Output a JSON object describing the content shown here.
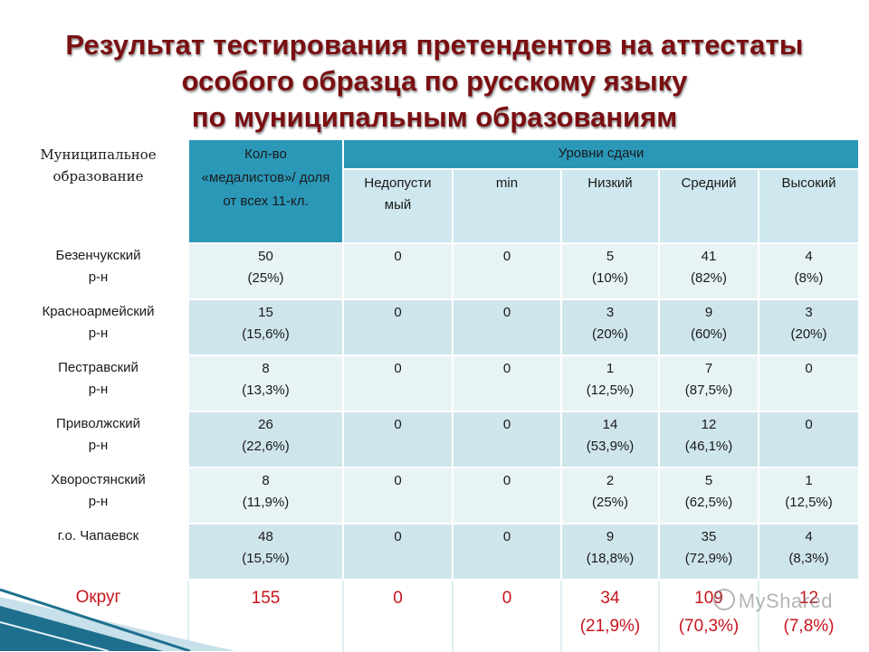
{
  "title": {
    "line1": "Результат тестирования претендентов на аттестаты",
    "line2": "особого образца по русскому языку",
    "line3": "по муниципальным образованиям"
  },
  "table": {
    "header": {
      "municipality": "Муниципальное образование",
      "medalists": "Кол-во «медалистов»/ доля от всех 11-кл.",
      "levels": "Уровни сдачи",
      "sub": [
        "Недопусти мый",
        "min",
        "Низкий",
        "Средний",
        "Высокий"
      ]
    },
    "rows": [
      {
        "name": [
          "Безенчукский",
          "р-н"
        ],
        "medalists": [
          "50",
          "(25%)"
        ],
        "c1": [
          "0"
        ],
        "c2": [
          "0"
        ],
        "c3": [
          "5",
          "(10%)"
        ],
        "c4": [
          "41",
          "(82%)"
        ],
        "c5": [
          "4",
          "(8%)"
        ]
      },
      {
        "name": [
          "Красноармейский",
          "р-н"
        ],
        "medalists": [
          "15",
          "(15,6%)"
        ],
        "c1": [
          "0"
        ],
        "c2": [
          "0"
        ],
        "c3": [
          "3",
          "(20%)"
        ],
        "c4": [
          "9",
          "(60%)"
        ],
        "c5": [
          "3",
          "(20%)"
        ]
      },
      {
        "name": [
          "Пестравский",
          "р-н"
        ],
        "medalists": [
          "8",
          "(13,3%)"
        ],
        "c1": [
          "0"
        ],
        "c2": [
          "0"
        ],
        "c3": [
          "1",
          "(12,5%)"
        ],
        "c4": [
          "7",
          "(87,5%)"
        ],
        "c5": [
          "0"
        ]
      },
      {
        "name": [
          "Приволжский",
          "р-н"
        ],
        "medalists": [
          "26",
          "(22,6%)"
        ],
        "c1": [
          "0"
        ],
        "c2": [
          "0"
        ],
        "c3": [
          "14",
          "(53,9%)"
        ],
        "c4": [
          "12",
          "(46,1%)"
        ],
        "c5": [
          "0"
        ]
      },
      {
        "name": [
          "Хворостянский",
          "р-н"
        ],
        "medalists": [
          "8",
          "(11,9%)"
        ],
        "c1": [
          "0"
        ],
        "c2": [
          "0"
        ],
        "c3": [
          "2",
          "(25%)"
        ],
        "c4": [
          "5",
          "(62,5%)"
        ],
        "c5": [
          "1",
          "(12,5%)"
        ]
      },
      {
        "name": [
          "г.о. Чапаевск"
        ],
        "medalists": [
          "48",
          "(15,5%)"
        ],
        "c1": [
          "0"
        ],
        "c2": [
          "0"
        ],
        "c3": [
          "9",
          "(18,8%)"
        ],
        "c4": [
          "35",
          "(72,9%)"
        ],
        "c5": [
          "4",
          "(8,3%)"
        ]
      }
    ],
    "total": {
      "name": [
        "Округ"
      ],
      "medalists": [
        "155"
      ],
      "c1": [
        "0"
      ],
      "c2": [
        "0"
      ],
      "c3": [
        "34",
        "(21,9%)"
      ],
      "c4": [
        "109",
        "(70,3%)"
      ],
      "c5": [
        "12",
        "(7,8%)"
      ]
    }
  },
  "watermark": "MyShared",
  "colors": {
    "title": "#7a0f12",
    "header_blue": "#2b98b8",
    "header_sub": "#cfe7ee",
    "total_red": "#c8141e"
  }
}
